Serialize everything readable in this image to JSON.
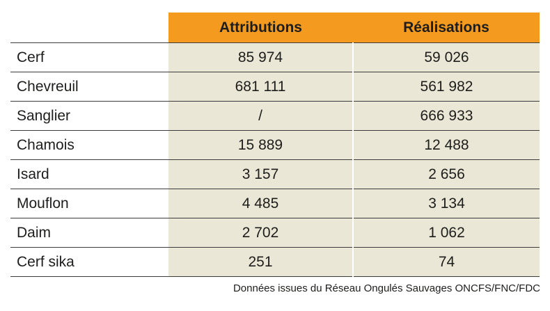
{
  "table": {
    "columns": {
      "attributions": "Attributions",
      "realisations": "Réalisations"
    },
    "rows": [
      {
        "species": "Cerf",
        "attributions": "85 974",
        "realisations": "59 026"
      },
      {
        "species": "Chevreuil",
        "attributions": "681 111",
        "realisations": "561 982"
      },
      {
        "species": "Sanglier",
        "attributions": "/",
        "realisations": "666 933"
      },
      {
        "species": "Chamois",
        "attributions": "15 889",
        "realisations": "12 488"
      },
      {
        "species": "Isard",
        "attributions": "3 157",
        "realisations": "2 656"
      },
      {
        "species": "Mouflon",
        "attributions": "4 485",
        "realisations": "3 134"
      },
      {
        "species": "Daim",
        "attributions": "2 702",
        "realisations": "1 062"
      },
      {
        "species": "Cerf sika",
        "attributions": "251",
        "realisations": "74"
      }
    ]
  },
  "source": "Données issues du Réseau Ongulés Sauvages ONCFS/FNC/FDC",
  "colors": {
    "header_bg": "#f39a1f",
    "cell_bg": "#ebe7d6"
  }
}
